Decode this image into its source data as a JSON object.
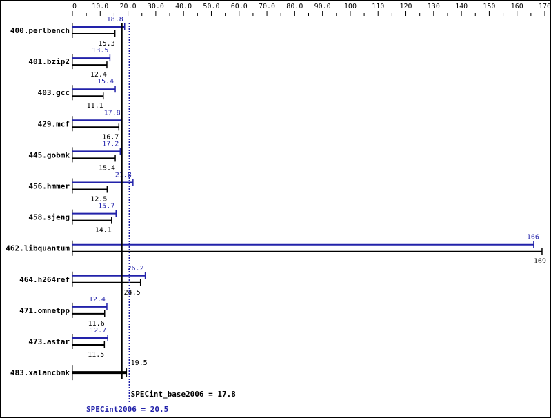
{
  "chart_data": {
    "type": "bar",
    "orientation": "horizontal",
    "xlim": [
      0,
      170
    ],
    "ticks": [
      {
        "v": 0,
        "label": "0"
      },
      {
        "v": 10,
        "label": "10.0"
      },
      {
        "v": 20,
        "label": "20.0"
      },
      {
        "v": 30,
        "label": "30.0"
      },
      {
        "v": 40,
        "label": "40.0"
      },
      {
        "v": 50,
        "label": "50.0"
      },
      {
        "v": 60,
        "label": "60.0"
      },
      {
        "v": 70,
        "label": "70.0"
      },
      {
        "v": 80,
        "label": "80.0"
      },
      {
        "v": 90,
        "label": "90.0"
      },
      {
        "v": 100,
        "label": "100"
      },
      {
        "v": 110,
        "label": "110"
      },
      {
        "v": 120,
        "label": "120"
      },
      {
        "v": 130,
        "label": "130"
      },
      {
        "v": 140,
        "label": "140"
      },
      {
        "v": 150,
        "label": "150"
      },
      {
        "v": 160,
        "label": "160"
      },
      {
        "v": 170,
        "label": "170"
      }
    ],
    "categories": [
      "400.perlbench",
      "401.bzip2",
      "403.gcc",
      "429.mcf",
      "445.gobmk",
      "456.hmmer",
      "458.sjeng",
      "462.libquantum",
      "464.h264ref",
      "471.omnetpp",
      "473.astar",
      "483.xalancbmk"
    ],
    "series": [
      {
        "name": "SPECint2006",
        "color": "#2222aa",
        "values": [
          18.8,
          13.5,
          15.4,
          17.8,
          17.2,
          21.8,
          15.7,
          166,
          26.2,
          12.4,
          12.7,
          19.5
        ],
        "labels": [
          "18.8",
          "13.5",
          "15.4",
          "17.8",
          "17.2",
          "21.8",
          "15.7",
          "166",
          "26.2",
          "12.4",
          "12.7",
          ""
        ]
      },
      {
        "name": "SPECint_base2006",
        "color": "#000000",
        "values": [
          15.3,
          12.4,
          11.1,
          16.7,
          15.4,
          12.5,
          14.1,
          169,
          24.5,
          11.6,
          11.5,
          19.5
        ],
        "labels": [
          "15.3",
          "12.4",
          "11.1",
          "16.7",
          "15.4",
          "12.5",
          "14.1",
          "169",
          "24.5",
          "11.6",
          "11.5",
          "19.5"
        ]
      }
    ],
    "reference_lines": [
      {
        "label": "SPECint_base2006 = 17.8",
        "value": 17.8,
        "color": "#000000",
        "style": "solid"
      },
      {
        "label": "SPECint2006 = 20.5",
        "value": 20.5,
        "color": "#2222aa",
        "style": "dotted"
      }
    ]
  }
}
